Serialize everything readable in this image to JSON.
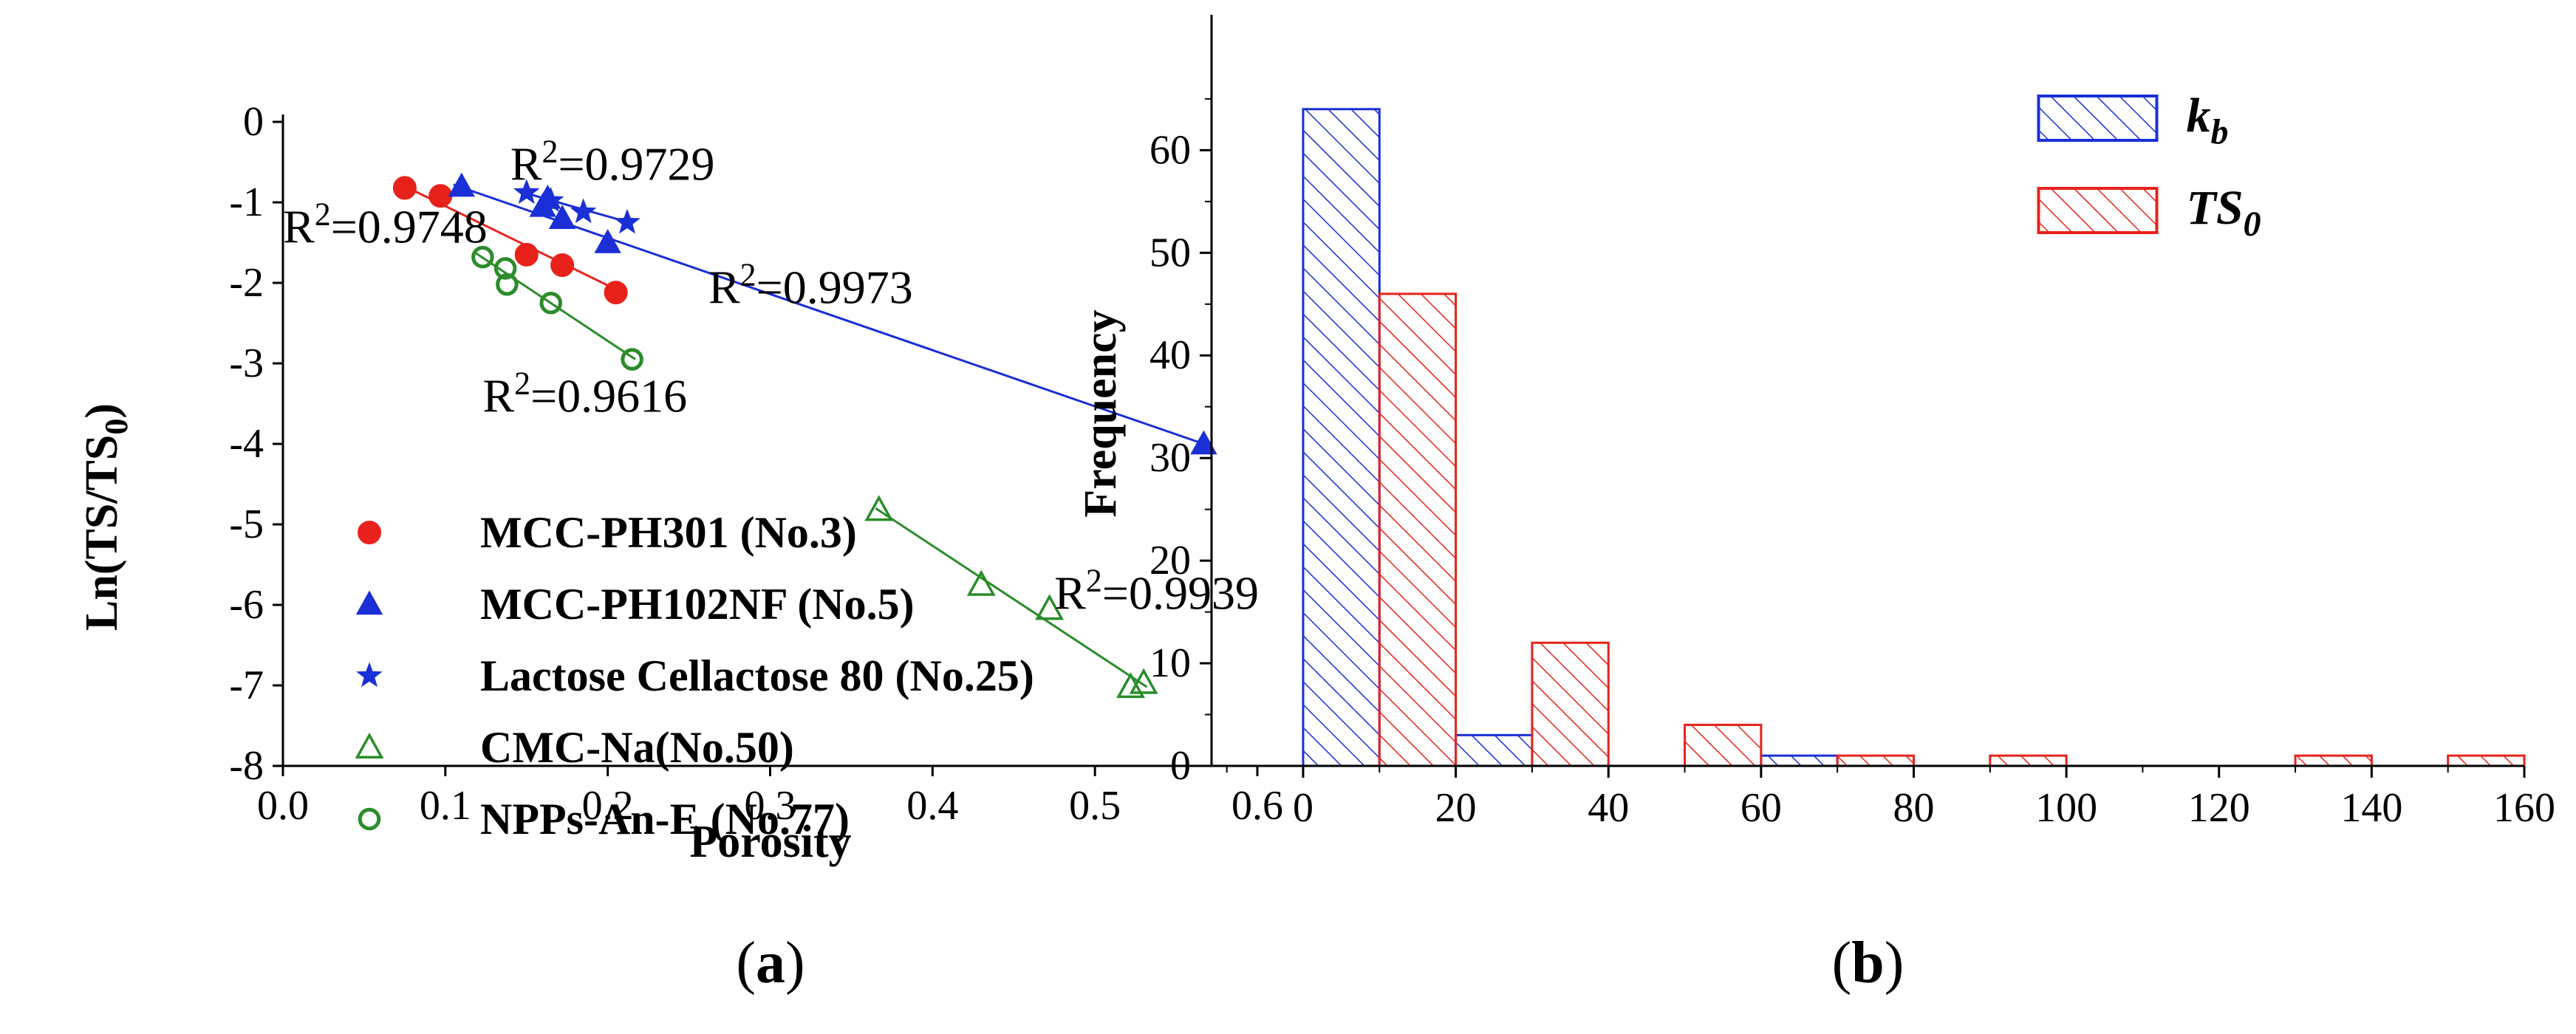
{
  "chart_data": [
    {
      "type": "scatter",
      "panel_label_prefix": "(",
      "panel_label_letter": "a",
      "panel_label_suffix": ")",
      "xlabel": "Porosity",
      "ylabel": "Ln(TS/TS",
      "ylabel_sub": "0",
      "ylabel_close": ")",
      "xlim": [
        0.0,
        0.6
      ],
      "ylim": [
        -8,
        0
      ],
      "xticks": [
        "0.0",
        "0.1",
        "0.2",
        "0.3",
        "0.4",
        "0.5",
        "0.6"
      ],
      "yticks": [
        "0",
        "-1",
        "-2",
        "-3",
        "-4",
        "-5",
        "-6",
        "-7",
        "-8"
      ],
      "legend_position": "lower-left",
      "series": [
        {
          "name": "MCC-PH301 (No.3)",
          "color": "#e8221b",
          "marker": "filled-circle",
          "x": [
            0.075,
            0.097,
            0.15,
            0.172,
            0.205
          ],
          "y": [
            -0.82,
            -0.92,
            -1.65,
            -1.78,
            -2.12
          ],
          "fit": {
            "x": [
              0.075,
              0.207
            ],
            "y": [
              -0.8,
              -2.1
            ]
          }
        },
        {
          "name": "MCC-PH102NF (No.5)",
          "color": "#1a2fd6",
          "marker": "filled-triangle",
          "x": [
            0.11,
            0.16,
            0.163,
            0.172,
            0.2,
            0.567
          ],
          "y": [
            -0.8,
            -1.05,
            -0.95,
            -1.2,
            -1.5,
            -4.0
          ],
          "fit": {
            "x": [
              0.105,
              0.567
            ],
            "y": [
              -0.78,
              -4.0
            ]
          }
        },
        {
          "name": "Lactose Cellactose 80 (No.25)",
          "color": "#1a2fd6",
          "marker": "star",
          "x": [
            0.15,
            0.165,
            0.185,
            0.212
          ],
          "y": [
            -0.88,
            -0.98,
            -1.12,
            -1.25
          ],
          "fit": {
            "x": [
              0.145,
              0.215
            ],
            "y": [
              -0.86,
              -1.26
            ]
          }
        },
        {
          "name": "CMC-Na(No.50)",
          "color": "#2a8c2a",
          "marker": "open-triangle",
          "x": [
            0.367,
            0.43,
            0.472,
            0.522,
            0.53
          ],
          "y": [
            -4.82,
            -5.75,
            -6.05,
            -7.02,
            -6.97
          ],
          "fit": {
            "x": [
              0.365,
              0.532
            ],
            "y": [
              -4.8,
              -7.02
            ]
          }
        },
        {
          "name": "NPPs-An-E (No.77)",
          "color": "#2a8c2a",
          "marker": "open-circle",
          "x": [
            0.123,
            0.137,
            0.138,
            0.165,
            0.215
          ],
          "y": [
            -1.68,
            -1.82,
            -2.02,
            -2.25,
            -2.95
          ],
          "fit": {
            "x": [
              0.118,
              0.217
            ],
            "y": [
              -1.62,
              -2.95
            ]
          }
        }
      ],
      "annotations": [
        {
          "base": "R",
          "sup": "2",
          "rest": "=0.9729",
          "x": 0.14,
          "y": -0.72
        },
        {
          "base": "R",
          "sup": "2",
          "rest": "=0.9748",
          "x": 0.0,
          "y": -1.5
        },
        {
          "base": "R",
          "sup": "2",
          "rest": "=0.9973",
          "x": 0.262,
          "y": -2.25
        },
        {
          "base": "R",
          "sup": "2",
          "rest": "=0.9616",
          "x": 0.123,
          "y": -3.6
        },
        {
          "base": "R",
          "sup": "2",
          "rest": "=0.9939",
          "x": 0.475,
          "y": -6.05
        }
      ]
    },
    {
      "type": "bar",
      "panel_label_prefix": "(",
      "panel_label_letter": "b",
      "panel_label_suffix": ")",
      "ylabel": "Frequency",
      "xlim": [
        -12,
        160
      ],
      "ylim": [
        0,
        66
      ],
      "xticks": [
        "0",
        "20",
        "40",
        "60",
        "80",
        "100",
        "120",
        "140",
        "160"
      ],
      "yticks": [
        "0",
        "10",
        "20",
        "30",
        "40",
        "50",
        "60"
      ],
      "legend_position": "top-right",
      "series": [
        {
          "name_base": "k",
          "name_sub": "b",
          "color": "#1a2fd6",
          "bins": [
            {
              "x0": 0,
              "x1": 10,
              "value": 64
            },
            {
              "x0": 20,
              "x1": 30,
              "value": 3
            },
            {
              "x0": 60,
              "x1": 70,
              "value": 1
            }
          ]
        },
        {
          "name_base": "TS",
          "name_sub": "0",
          "color": "#e8221b",
          "bins": [
            {
              "x0": 10,
              "x1": 20,
              "value": 46
            },
            {
              "x0": 30,
              "x1": 40,
              "value": 12
            },
            {
              "x0": 50,
              "x1": 60,
              "value": 4
            },
            {
              "x0": 70,
              "x1": 80,
              "value": 1
            },
            {
              "x0": 90,
              "x1": 100,
              "value": 1
            },
            {
              "x0": 130,
              "x1": 140,
              "value": 1
            },
            {
              "x0": 150,
              "x1": 160,
              "value": 1
            }
          ]
        }
      ]
    }
  ]
}
